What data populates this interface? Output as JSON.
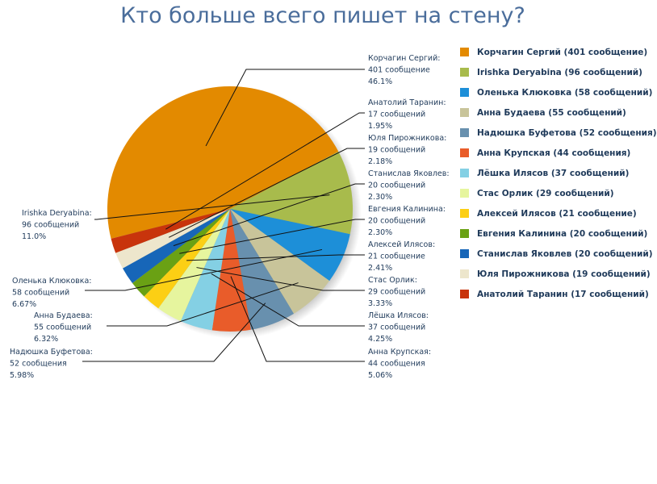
{
  "chart_data": {
    "type": "pie",
    "title": "Кто больше всего пишет на стену?",
    "slices": [
      {
        "legend": "Корчагин Сергий (401 сообщение)",
        "label": [
          "Корчагин Сергий:",
          "401 сообщение",
          "46.1%"
        ],
        "value": 401,
        "percent": 46.1,
        "color": "#e38a00"
      },
      {
        "legend": "Irishka Deryabina (96 сообщений)",
        "label": [
          "Irishka Deryabina:",
          "96 сообщений",
          "11.0%"
        ],
        "value": 96,
        "percent": 11.0,
        "color": "#a8bb4c"
      },
      {
        "legend": "Оленька Клюковка (58 сообщений)",
        "label": [
          "Оленька Клюковка:",
          "58 сообщений",
          "6.67%"
        ],
        "value": 58,
        "percent": 6.67,
        "color": "#1d8fd8"
      },
      {
        "legend": "Анна Будаева (55 сообщений)",
        "label": [
          "Анна Будаева:",
          "55 сообщений",
          "6.32%"
        ],
        "value": 55,
        "percent": 6.32,
        "color": "#c8c49a"
      },
      {
        "legend": "Надюшка Буфетова (52 сообщения)",
        "label": [
          "Надюшка Буфетова:",
          "52 сообщения",
          "5.98%"
        ],
        "value": 52,
        "percent": 5.98,
        "color": "#6890ae"
      },
      {
        "legend": "Анна Крупская (44 сообщения)",
        "label": [
          "Анна Крупская:",
          "44 сообщения",
          "5.06%"
        ],
        "value": 44,
        "percent": 5.06,
        "color": "#e95c2a"
      },
      {
        "legend": "Лёшка Илясов (37 сообщений)",
        "label": [
          "Лёшка Илясов:",
          "37 сообщений",
          "4.25%"
        ],
        "value": 37,
        "percent": 4.25,
        "color": "#84d0e4"
      },
      {
        "legend": "Стас Орлик (29 сообщений)",
        "label": [
          "Стас Орлик:",
          "29 сообщений",
          "3.33%"
        ],
        "value": 29,
        "percent": 3.33,
        "color": "#e6f59e"
      },
      {
        "legend": "Алексей Илясов (21 сообщение)",
        "label": [
          "Алексей Илясов:",
          "21 сообщение",
          "2.41%"
        ],
        "value": 21,
        "percent": 2.41,
        "color": "#fccf14"
      },
      {
        "legend": "Евгения Калинина (20 сообщений)",
        "label": [
          "Евгения Калинина:",
          "20 сообщений",
          "2.30%"
        ],
        "value": 20,
        "percent": 2.3,
        "color": "#6aa114"
      },
      {
        "legend": "Станислав Яковлев (20 сообщений)",
        "label": [
          "Станислав Яковлев:",
          "20 сообщений",
          "2.30%"
        ],
        "value": 20,
        "percent": 2.3,
        "color": "#1766b8"
      },
      {
        "legend": "Юля Пирожникова (19 сообщений)",
        "label": [
          "Юля Пирожникова:",
          "19 сообщений",
          "2.18%"
        ],
        "value": 19,
        "percent": 2.18,
        "color": "#ede6cc"
      },
      {
        "legend": "Анатолий Таранин (17 сообщений)",
        "label": [
          "Анатолий Таранин:",
          "17 сообщений",
          "1.95%"
        ],
        "value": 17,
        "percent": 1.95,
        "color": "#c8340c"
      }
    ]
  }
}
